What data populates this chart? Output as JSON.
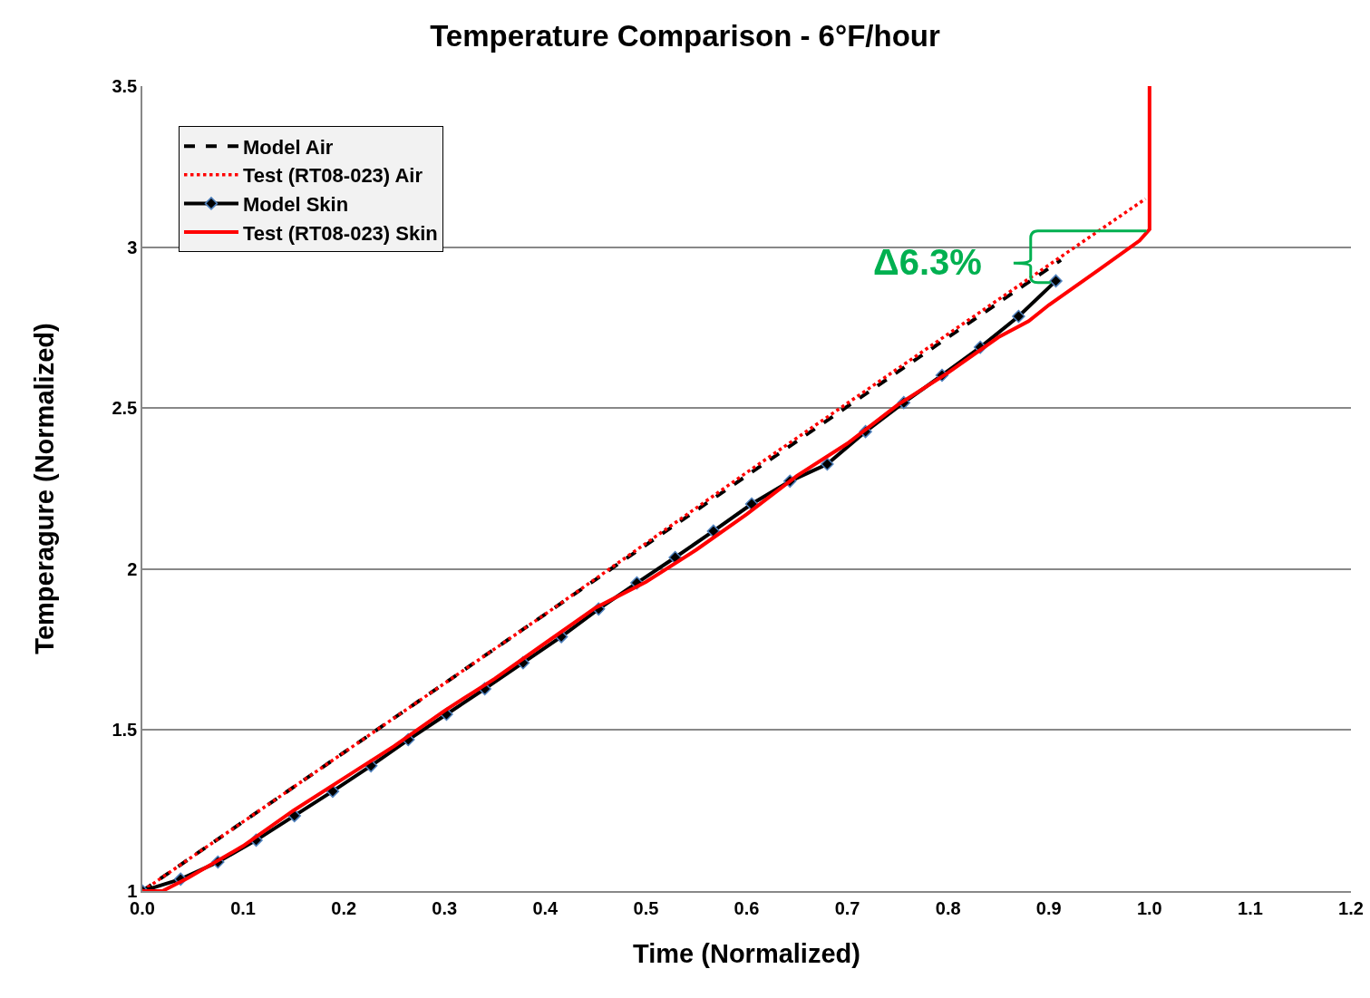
{
  "chart_data": {
    "type": "line",
    "title": "Temperature Comparison - 6°F/hour",
    "xlabel": "Time (Normalized)",
    "ylabel": "Temperagure (Normalized)",
    "xlim": [
      0,
      1.2
    ],
    "xticks": [
      {
        "value": 0,
        "label": "0.0"
      },
      {
        "value": 0.1,
        "label": "0.1"
      },
      {
        "value": 0.2,
        "label": "0.2"
      },
      {
        "value": 0.3,
        "label": "0.3"
      },
      {
        "value": 0.4,
        "label": "0.4"
      },
      {
        "value": 0.5,
        "label": "0.5"
      },
      {
        "value": 0.6,
        "label": "0.6"
      },
      {
        "value": 0.7,
        "label": "0.7"
      },
      {
        "value": 0.8,
        "label": "0.8"
      },
      {
        "value": 0.9,
        "label": "0.9"
      },
      {
        "value": 1,
        "label": "1.0"
      },
      {
        "value": 1.1,
        "label": "1.1"
      },
      {
        "value": 1.2,
        "label": "1.2"
      }
    ],
    "ylim": [
      1,
      3.5
    ],
    "yticks": [
      1,
      1.5,
      2,
      2.5,
      3,
      3.5
    ],
    "grid": "y",
    "legend": "top left",
    "series": [
      {
        "name": "Model Air",
        "color": "#000000",
        "line_style": "dashed",
        "marker": "none",
        "x": [
          0,
          0.2,
          0.4,
          0.6,
          0.8,
          0.912
        ],
        "values": [
          1,
          1.43,
          1.86,
          2.29,
          2.72,
          2.96
        ]
      },
      {
        "name": "Test (RT08-023) Air",
        "color": "#ff0000",
        "line_style": "dotted",
        "marker": "none",
        "x": [
          0,
          0.2,
          0.4,
          0.6,
          0.8,
          0.996
        ],
        "values": [
          1,
          1.43,
          1.86,
          2.3,
          2.73,
          3.15
        ]
      },
      {
        "name": "Model Skin",
        "color": "#000000",
        "line_style": "solid",
        "marker": "diamond",
        "x": [
          0,
          0.038,
          0.075,
          0.113,
          0.151,
          0.189,
          0.227,
          0.264,
          0.302,
          0.34,
          0.378,
          0.416,
          0.453,
          0.491,
          0.529,
          0.567,
          0.605,
          0.643,
          0.68,
          0.718,
          0.756,
          0.794,
          0.832,
          0.87,
          0.907
        ],
        "values": [
          1,
          1.037,
          1.09,
          1.158,
          1.234,
          1.31,
          1.389,
          1.47,
          1.549,
          1.628,
          1.709,
          1.79,
          1.876,
          1.957,
          2.036,
          2.118,
          2.202,
          2.273,
          2.326,
          2.427,
          2.517,
          2.602,
          2.689,
          2.785,
          2.895
        ]
      },
      {
        "name": "Test (RT08-023) Skin",
        "color": "#ff0000",
        "line_style": "solid",
        "marker": "none",
        "x": [
          0,
          0.02,
          0.045,
          0.1,
          0.15,
          0.2,
          0.25,
          0.3,
          0.35,
          0.4,
          0.45,
          0.5,
          0.55,
          0.6,
          0.65,
          0.7,
          0.75,
          0.8,
          0.85,
          0.88,
          0.9,
          0.95,
          0.99,
          1,
          1
        ],
        "values": [
          1,
          1,
          1.04,
          1.14,
          1.25,
          1.35,
          1.45,
          1.56,
          1.66,
          1.77,
          1.88,
          1.96,
          2.06,
          2.17,
          2.29,
          2.39,
          2.51,
          2.61,
          2.72,
          2.77,
          2.82,
          2.93,
          3.02,
          3.055,
          3.5
        ]
      }
    ],
    "annotations": [
      "Δ6.3%"
    ]
  }
}
